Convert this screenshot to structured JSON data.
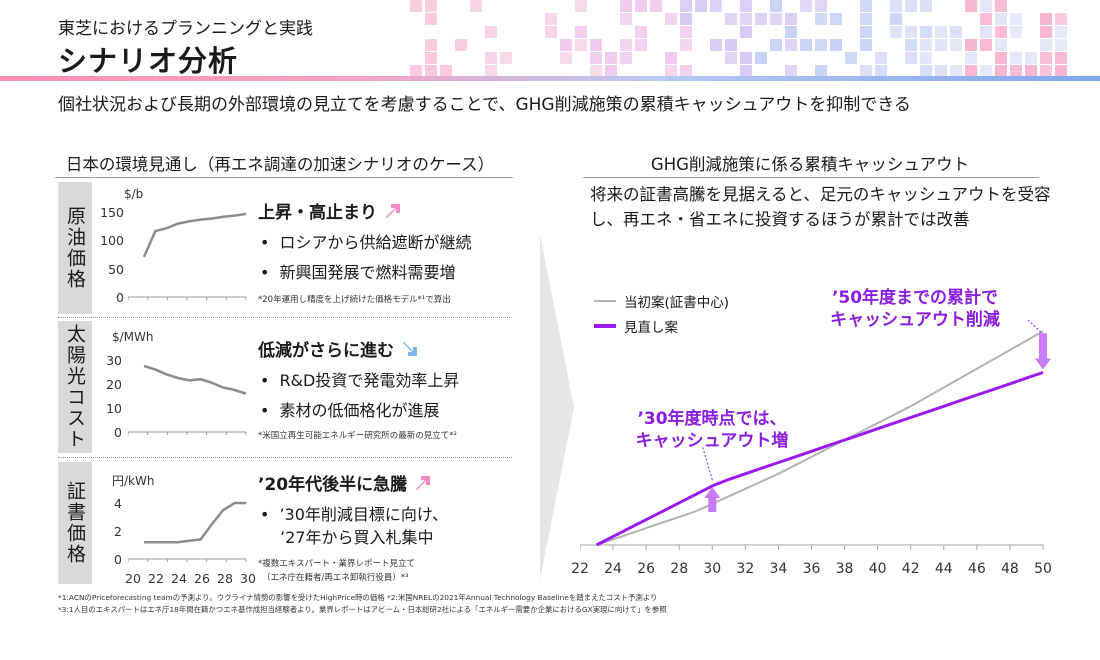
{
  "header": {
    "supertitle": "東芝におけるプランニングと実践",
    "title": "シナリオ分析",
    "subtitle": "個社状況および長期の外部環境の見立てを考慮することで、GHG削減施策の累積キャッシュアウトを抑制できる"
  },
  "left": {
    "heading": "日本の環境見通し（再エネ調達の加速シナリオのケース）",
    "panels": [
      {
        "label": "原油価格",
        "unit": "$/b",
        "yticks": [
          "150",
          "100",
          "50",
          "0"
        ],
        "ymax": 150,
        "values": [
          70,
          115,
          120,
          128,
          132,
          135,
          137,
          140,
          142,
          145
        ],
        "headline": "上昇・高止まり",
        "trend_icon": "arrow-up-right-icon",
        "bullets": [
          "ロシアから供給遮断が継続",
          "新興国発展で燃料需要増"
        ],
        "note": "*20年運用し精度を上げ続けた価格モデル*¹で算出"
      },
      {
        "label": "太陽光コスト",
        "unit": "$/MWh",
        "yticks": [
          "30",
          "20",
          "10",
          "0"
        ],
        "ymax": 30,
        "values": [
          27.5,
          26,
          24,
          22.5,
          21.5,
          22,
          20.5,
          18.5,
          17.5,
          16
        ],
        "headline": "低減がさらに進む",
        "trend_icon": "arrow-down-right-icon",
        "bullets": [
          "R&D投資で発電効率上昇",
          "素材の低価格化が進展"
        ],
        "note": "*米国立再生可能エネルギー研究所の最新の見立て*²"
      },
      {
        "label": "証書価格",
        "unit": "円/kWh",
        "yticks": [
          "4",
          "2",
          "0"
        ],
        "ymax": 4,
        "values": [
          1.2,
          1.2,
          1.2,
          1.2,
          1.3,
          1.4,
          2.5,
          3.5,
          4,
          4
        ],
        "headline": "’20年代後半に急騰",
        "trend_icon": "arrow-up-right-icon",
        "bullets": [
          "’30年削減目標に向け、",
          "’27年から買入札集中"
        ],
        "note": "*複数エキスパート・業界レポート見立て",
        "note2": "（エネ庁在籍者/再エネ卸執行役員）*³",
        "xticks": [
          "20",
          "22",
          "24",
          "26",
          "28",
          "30"
        ]
      }
    ]
  },
  "right": {
    "heading": "GHG削減施策に係る累積キャッシュアウト",
    "lede": "将来の証書高騰を見据えると、足元のキャッシュアウトを受容し、再エネ・省エネに投資するほうが累計では改善",
    "callout_2030": [
      "’30年度時点では、",
      "キャッシュアウト増"
    ],
    "callout_2050": [
      "’50年度までの累計で",
      "キャッシュアウト削減"
    ],
    "colors": {
      "baseline": "#b3b3b3",
      "revised": "#9b19f5"
    }
  },
  "chart_data": {
    "type": "line",
    "x": [
      23,
      24,
      25,
      26,
      27,
      28,
      29,
      30,
      31,
      32,
      33,
      34,
      35,
      36,
      37,
      38,
      39,
      40,
      41,
      42,
      43,
      44,
      45,
      46,
      47,
      48,
      49,
      50
    ],
    "series": [
      {
        "name": "当初案(証書中心)",
        "values": [
          0,
          3,
          6,
          9,
          12,
          15,
          18,
          22,
          26,
          30,
          34,
          38,
          42.5,
          47,
          51.5,
          56,
          60.5,
          65,
          69.5,
          74,
          79,
          84,
          89,
          94,
          99,
          104,
          109,
          114
        ]
      },
      {
        "name": "見直し案",
        "values": [
          0,
          4.5,
          9,
          13.5,
          18,
          22.5,
          27,
          31.5,
          35,
          38,
          41,
          44,
          47,
          50,
          53,
          56,
          59,
          62,
          65,
          68,
          71,
          74,
          77,
          80,
          83,
          86,
          89,
          92
        ]
      }
    ],
    "xticks": [
      "22",
      "24",
      "26",
      "28",
      "30",
      "32",
      "34",
      "36",
      "38",
      "40",
      "42",
      "44",
      "46",
      "48",
      "50"
    ],
    "xlim": [
      22,
      50
    ],
    "ylim": [
      0,
      120
    ],
    "grid": false,
    "legend": "top-left"
  },
  "footnotes": [
    "*1:ACNのPriceforecasting teamの予測より。ウクライナ情勢の影響を受けたHighPrice時の価格 *2:米国NRELの2021年Annual Technology Baselineを踏まえたコスト予測より",
    "*3:1人目のエキスパートはエネ庁18年間在籍かつエネ基作成担当経験者より。業界レポートはアビーム・日本総研2社による「エネルギー需要か企業におけるGX実現に向けて」を参照"
  ]
}
